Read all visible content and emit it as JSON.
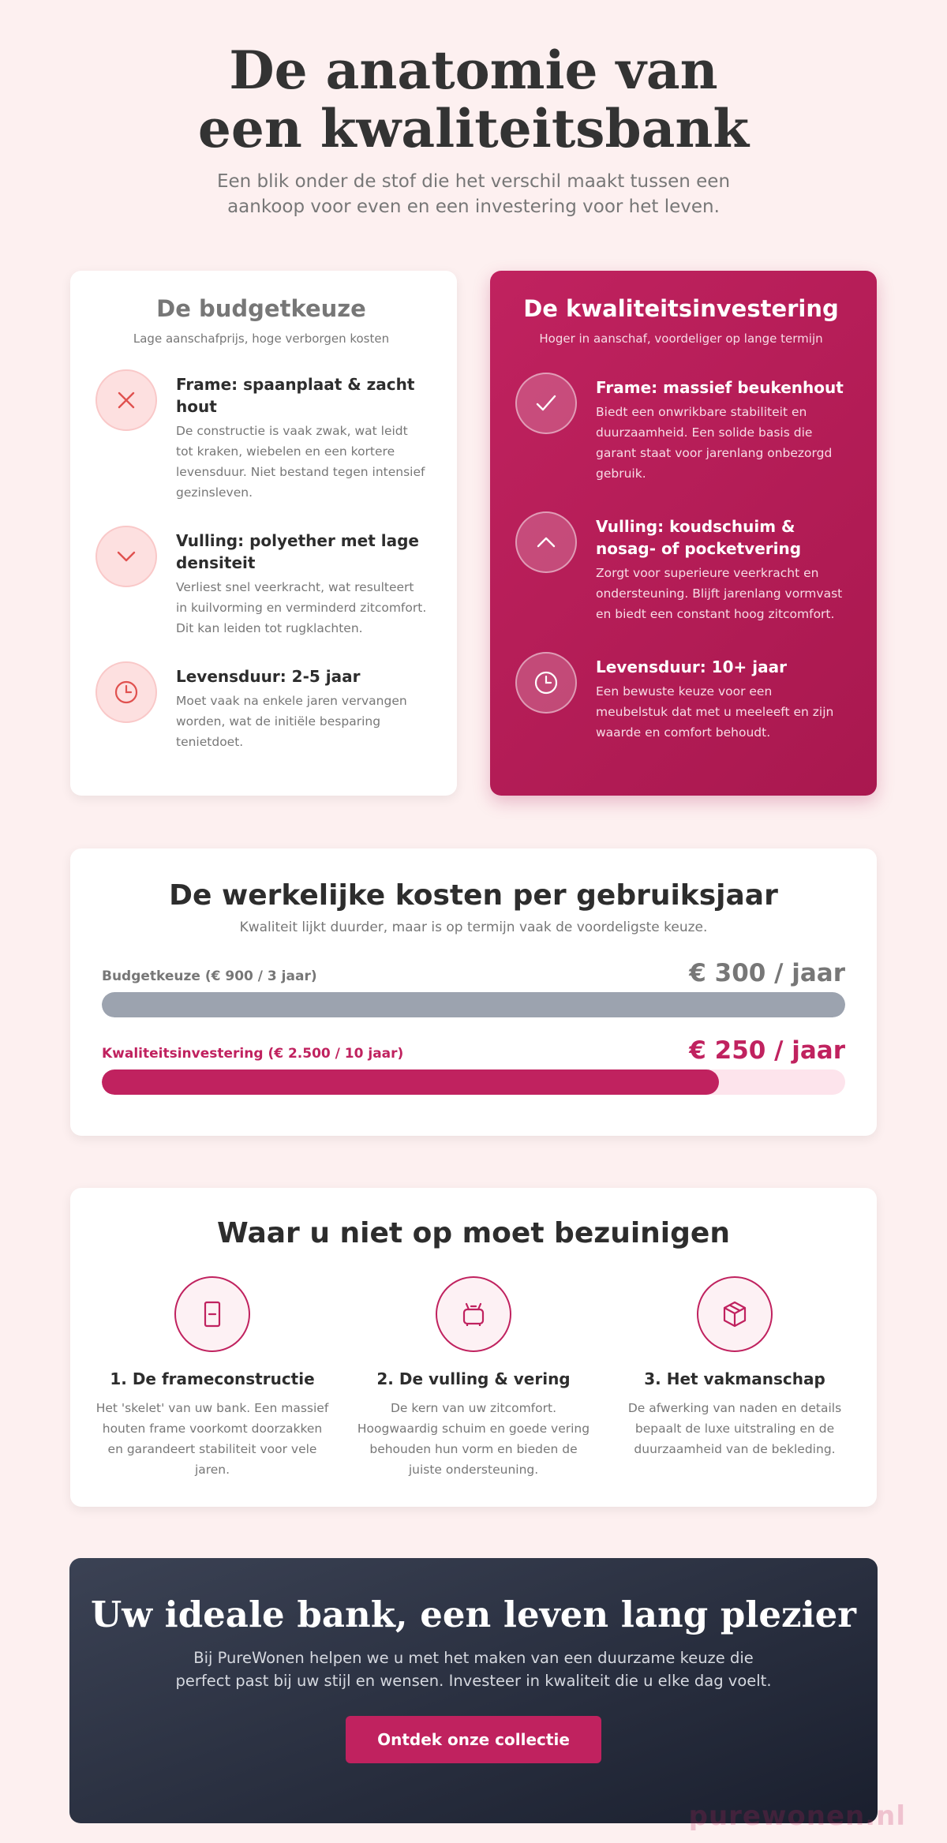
{
  "hero": {
    "title": "De anatomie van een kwaliteitsbank",
    "subtitle": "Een blik onder de stof die het verschil maakt tussen een aankoop voor even en een investering voor het leven."
  },
  "budget": {
    "title": "De budgetkeuze",
    "subtitle": "Lage aanschafprijs, hoge verborgen kosten",
    "features": [
      {
        "icon": "x-icon",
        "title": "Frame: spaanplaat & zacht hout",
        "text": "De constructie is vaak zwak, wat leidt tot kraken, wiebelen en een kortere levensduur. Niet bestand tegen intensief gezinsleven."
      },
      {
        "icon": "chevron-down-icon",
        "title": "Vulling: polyether met lage densiteit",
        "text": "Verliest snel veerkracht, wat resulteert in kuilvorming en verminderd zitcomfort. Dit kan leiden tot rugklachten."
      },
      {
        "icon": "clock-icon",
        "title": "Levensduur: 2-5 jaar",
        "text": "Moet vaak na enkele jaren vervangen worden, wat de initiële besparing tenietdoet."
      }
    ]
  },
  "quality": {
    "title": "De kwaliteitsinvestering",
    "subtitle": "Hoger in aanschaf, voordeliger op lange termijn",
    "features": [
      {
        "icon": "check-icon",
        "title": "Frame: massief beukenhout",
        "text": "Biedt een onwrikbare stabiliteit en duurzaamheid. Een solide basis die garant staat voor jarenlang onbezorgd gebruik."
      },
      {
        "icon": "chevron-up-icon",
        "title": "Vulling: koudschuim & nosag- of pocketvering",
        "text": "Zorgt voor superieure veerkracht en ondersteuning. Blijft jarenlang vormvast en biedt een constant hoog zitcomfort."
      },
      {
        "icon": "clock-icon",
        "title": "Levensduur: 10+ jaar",
        "text": "Een bewuste keuze voor een meubelstuk dat met u meeleeft en zijn waarde en comfort behoudt."
      }
    ]
  },
  "costs": {
    "title": "De werkelijke kosten per gebruiksjaar",
    "subtitle": "Kwaliteit lijkt duurder, maar is op termijn vaak de voordeligste keuze.",
    "bars": [
      {
        "label": "Budgetkeuze (€ 900 / 3 jaar)",
        "value": "€ 300 / jaar",
        "fill_percent": 100
      },
      {
        "label": "Kwaliteitsinvestering (€ 2.500 / 10 jaar)",
        "value": "€ 250 / jaar",
        "fill_percent": 83
      }
    ]
  },
  "musts": {
    "title": "Waar u niet op moet bezuinigen",
    "items": [
      {
        "icon": "frame-icon",
        "title": "1. De frameconstructie",
        "text": "Het 'skelet' van uw bank. Een massief houten frame voorkomt doorzakken en garandeert stabiliteit voor vele jaren."
      },
      {
        "icon": "sofa-spring-icon",
        "title": "2. De vulling & vering",
        "text": "De kern van uw zitcomfort. Hoogwaardig schuim en goede vering behouden hun vorm en bieden de juiste ondersteuning."
      },
      {
        "icon": "box-icon",
        "title": "3. Het vakmanschap",
        "text": "De afwerking van naden en details bepaalt de luxe uitstraling en de duurzaamheid van de bekleding."
      }
    ]
  },
  "cta": {
    "title": "Uw ideale bank, een leven lang plezier",
    "text": "Bij PureWonen helpen we u met het maken van een duurzame keuze die perfect past bij uw stijl en wensen. Investeer in kwaliteit die u elke dag voelt.",
    "button": "Ontdek onze collectie"
  },
  "watermark": "purewonen.nl",
  "colors": {
    "accent": "#c0225f",
    "background": "#fdf0f0",
    "budget_bar": "#9ca3af",
    "dark": "#1a1f2e"
  }
}
